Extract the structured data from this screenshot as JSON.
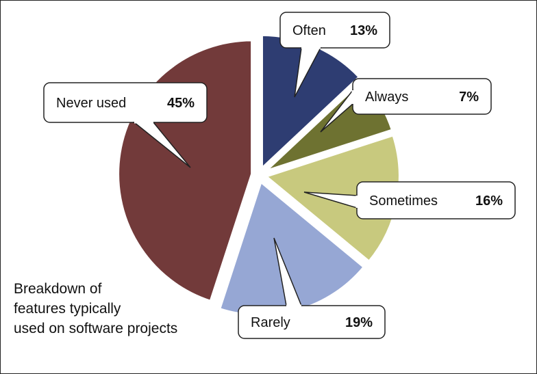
{
  "chart_data": {
    "type": "pie",
    "title": "",
    "slices": [
      {
        "label": "Often",
        "value": 13,
        "display": "13%",
        "color": "#2e3d72"
      },
      {
        "label": "Always",
        "value": 7,
        "display": "7%",
        "color": "#6e7231"
      },
      {
        "label": "Sometimes",
        "value": 16,
        "display": "16%",
        "color": "#c8c97e"
      },
      {
        "label": "Rarely",
        "value": 19,
        "display": "19%",
        "color": "#96a7d4"
      },
      {
        "label": "Never used",
        "value": 45,
        "display": "45%",
        "color": "#723a3a"
      }
    ],
    "exploded": true,
    "legend": "none"
  },
  "caption": {
    "line1": "Breakdown of",
    "line2": "features typically",
    "line3": "used on software projects"
  }
}
